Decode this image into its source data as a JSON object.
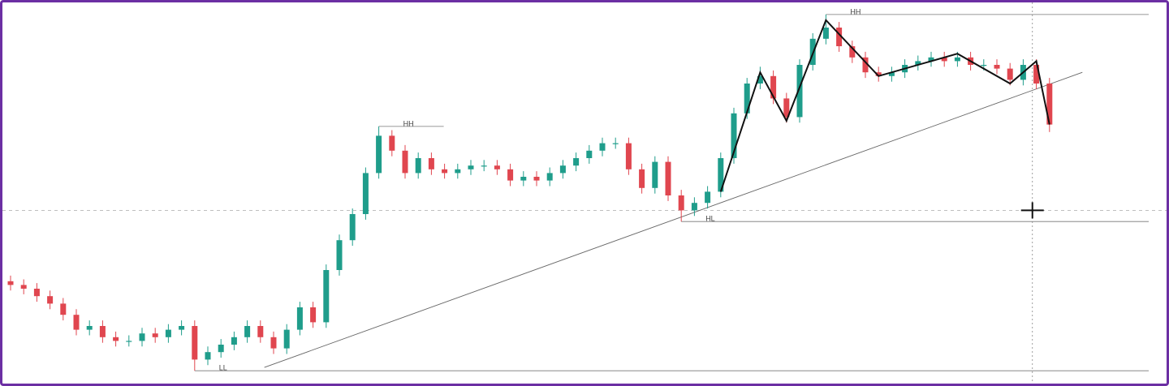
{
  "chart_data": {
    "type": "candlestick",
    "up_color": "#1f9d8b",
    "down_color": "#e0464f",
    "ylim": [
      0,
      100
    ],
    "open": [
      27,
      26,
      25,
      23,
      21,
      18,
      14,
      15,
      12,
      11,
      11,
      13,
      12,
      14,
      15,
      6,
      8,
      10,
      12,
      15,
      12,
      9,
      14,
      20,
      16,
      30,
      38,
      45,
      56,
      66,
      62,
      56,
      60,
      57,
      56,
      57,
      58,
      58,
      57,
      54,
      55,
      54,
      56,
      58,
      60,
      62,
      64,
      64,
      57,
      52,
      59,
      50,
      46,
      48,
      51,
      60,
      72,
      80,
      82,
      76,
      71,
      85,
      92,
      95,
      90,
      87,
      83,
      82,
      83,
      85,
      86,
      87,
      86,
      87,
      85,
      85,
      84,
      81,
      85,
      80
    ],
    "high": [
      28.5,
      27.5,
      26.5,
      24.5,
      22.5,
      19.5,
      16.5,
      16.5,
      13.5,
      12.5,
      14.5,
      14.5,
      15.5,
      16.5,
      16.5,
      9.5,
      11.5,
      13.5,
      16.5,
      16.5,
      13.5,
      15.5,
      21.5,
      21.5,
      31.5,
      39.5,
      46.5,
      57.5,
      68.5,
      67.5,
      63.5,
      61.5,
      61.5,
      58.5,
      58.5,
      59.5,
      59.5,
      59.5,
      58.5,
      56.5,
      56.5,
      57.5,
      59.5,
      61.5,
      63.5,
      65.5,
      65.5,
      65.5,
      58.5,
      60.5,
      60.5,
      51.5,
      49.5,
      52.5,
      61.5,
      73.5,
      81.5,
      84.5,
      83.5,
      77.5,
      86.5,
      93.5,
      98.5,
      96.5,
      91.5,
      88.5,
      84.5,
      84.5,
      86.5,
      87.5,
      88.5,
      88.5,
      88.5,
      88.5,
      86.5,
      86.5,
      85.5,
      86.5,
      86.5,
      81.5
    ],
    "low": [
      24.5,
      23.5,
      21.5,
      19.5,
      16.5,
      12.5,
      12.5,
      10.5,
      9.5,
      9.5,
      9.5,
      10.5,
      10.5,
      12.5,
      3,
      4.5,
      6.5,
      8.5,
      10.5,
      10.5,
      7.5,
      7.5,
      12.5,
      14.5,
      14.5,
      28.5,
      36.5,
      43.5,
      54.5,
      60.5,
      54.5,
      54.5,
      55.5,
      54.5,
      54.5,
      55.5,
      56.5,
      55.5,
      52.5,
      52.5,
      52.5,
      52.5,
      54.5,
      56.5,
      58.5,
      60.5,
      62.5,
      55.5,
      50.5,
      50.5,
      48.5,
      43,
      44.5,
      46.5,
      49.5,
      58.5,
      70.5,
      78.5,
      74.5,
      69.5,
      69.5,
      83.5,
      90.5,
      88.5,
      85.5,
      81.5,
      80.5,
      80.5,
      81.5,
      83.5,
      84.5,
      84.5,
      84.5,
      83.5,
      83.5,
      82.5,
      79.5,
      79.5,
      78.5,
      67
    ],
    "close": [
      26,
      25,
      23,
      21,
      18,
      14,
      15,
      12,
      11,
      11,
      13,
      12,
      14,
      15,
      6,
      8,
      10,
      12,
      15,
      12,
      9,
      14,
      20,
      16,
      30,
      38,
      45,
      56,
      66,
      62,
      56,
      60,
      57,
      56,
      57,
      58,
      58,
      57,
      54,
      55,
      54,
      56,
      58,
      60,
      62,
      64,
      64,
      57,
      52,
      59,
      50,
      46,
      48,
      51,
      60,
      72,
      80,
      82,
      76,
      71,
      85,
      92,
      95,
      90,
      87,
      83,
      82,
      83,
      85,
      86,
      87,
      86,
      87,
      85,
      85,
      84,
      81,
      85,
      80,
      69
    ],
    "zigzag": {
      "x": [
        54,
        57,
        59,
        62,
        66,
        72,
        76,
        78,
        79
      ],
      "values": [
        51,
        83,
        70,
        97,
        82,
        88,
        80,
        86,
        69
      ]
    },
    "trendline": {
      "x": [
        19.3,
        81.5
      ],
      "values": [
        3.9,
        83
      ]
    },
    "levels": [
      {
        "label": "HH",
        "value": 68.5,
        "from": 28,
        "extend": false
      },
      {
        "label": "HH",
        "value": 98.5,
        "from": 62,
        "extend": true
      },
      {
        "label": "HL",
        "value": 43,
        "from": 51,
        "extend": true
      },
      {
        "label": "LL",
        "value": 3,
        "from": 14,
        "extend": true
      }
    ],
    "crosshair": {
      "x": 77.7,
      "value": 46
    }
  }
}
